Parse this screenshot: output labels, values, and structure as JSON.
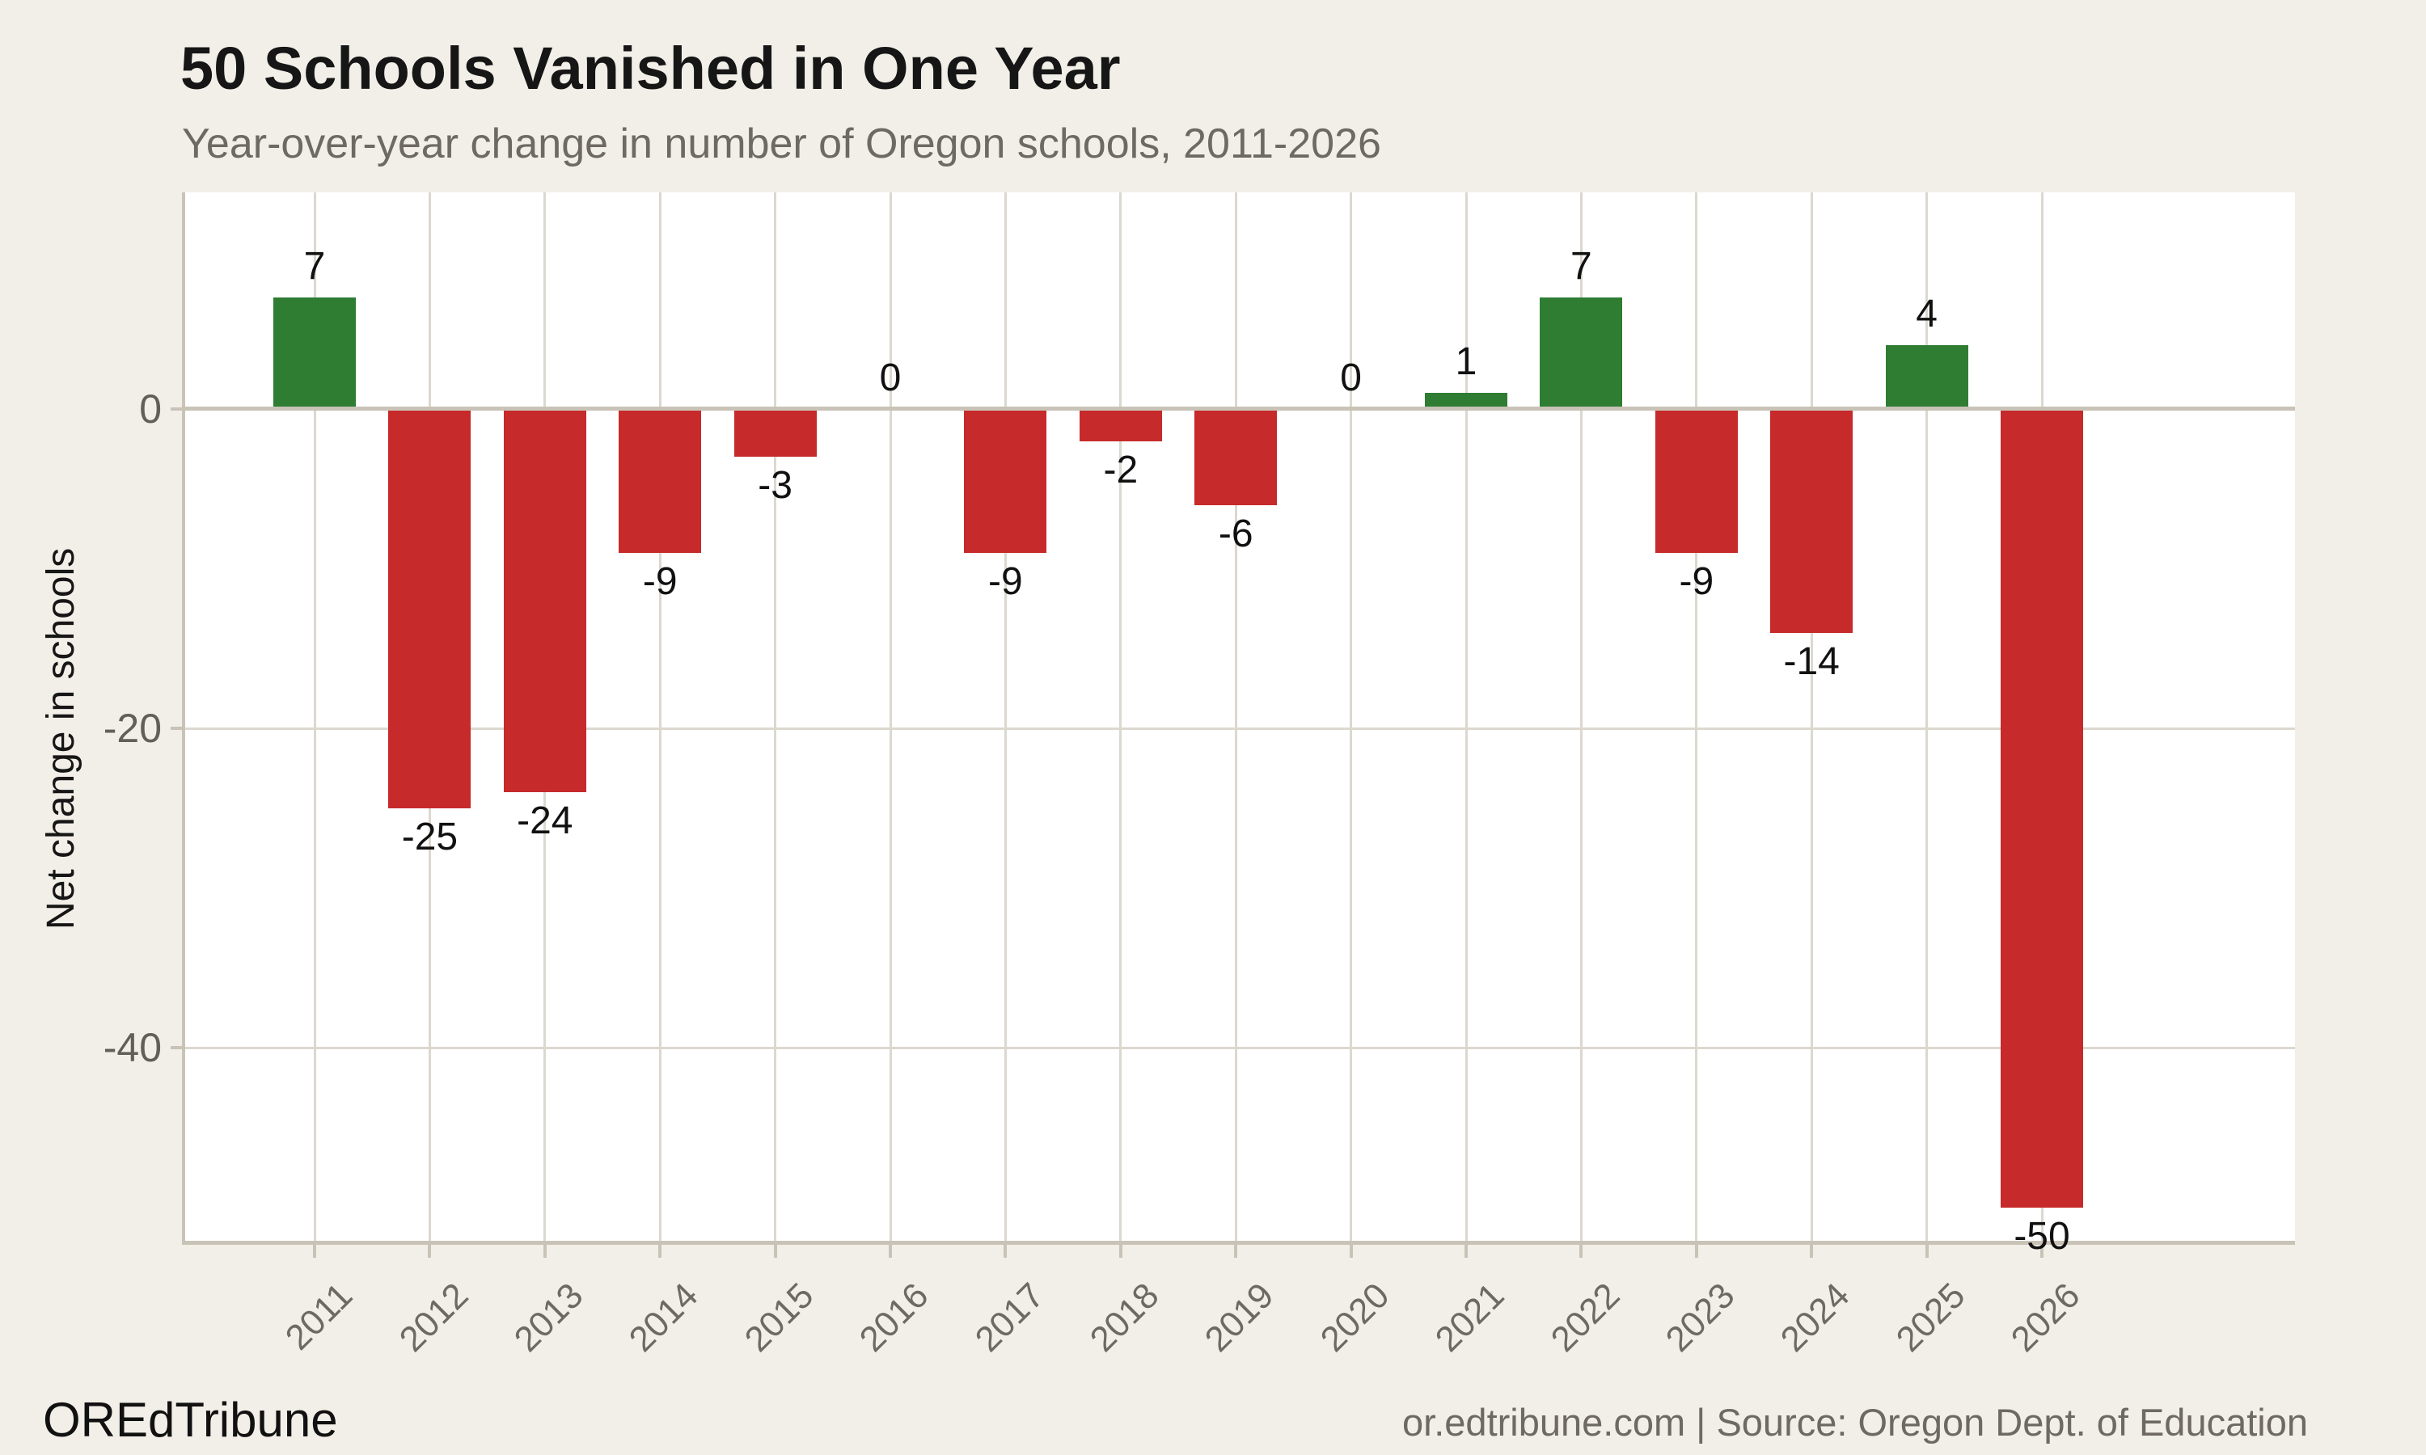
{
  "header": {
    "title": "50 Schools Vanished in One Year",
    "subtitle": "Year-over-year change in number of Oregon schools, 2011-2026"
  },
  "chart_data": {
    "type": "bar",
    "title": "50 Schools Vanished in One Year",
    "subtitle": "Year-over-year change in number of Oregon schools, 2011-2026",
    "xlabel": "",
    "ylabel": "Net change in schools",
    "categories": [
      "2011",
      "2012",
      "2013",
      "2014",
      "2015",
      "2016",
      "2017",
      "2018",
      "2019",
      "2020",
      "2021",
      "2022",
      "2023",
      "2024",
      "2025",
      "2026"
    ],
    "values": [
      7,
      -25,
      -24,
      -9,
      -3,
      0,
      -9,
      -2,
      -6,
      0,
      1,
      7,
      -9,
      -14,
      4,
      -50
    ],
    "bar_labels": [
      "7",
      "-25",
      "-24",
      "-9",
      "-3",
      "0",
      "-9",
      "-2",
      "-6",
      "0",
      "1",
      "7",
      "-9",
      "-14",
      "4",
      "-50"
    ],
    "yticks": [
      {
        "value": 0,
        "label": "0"
      },
      {
        "value": -20,
        "label": "-20"
      },
      {
        "value": -40,
        "label": "-40"
      }
    ],
    "ylim": [
      -52.4,
      13.6
    ],
    "grid": true,
    "legend": false,
    "bar_color_positive": "#2e7d33",
    "bar_color_negative": "#c62a2a"
  },
  "footer": {
    "left": "OREdTribune",
    "right": "or.edtribune.com | Source: Oregon Dept. of Education"
  },
  "theme": {
    "page_bg": "#f2efe8",
    "plot_bg": "#ffffff",
    "axis": "#c9c3b7",
    "grid": "#dcd8cf",
    "ink": "#161616",
    "muted": "#6e6962",
    "tick": "#635f58"
  }
}
